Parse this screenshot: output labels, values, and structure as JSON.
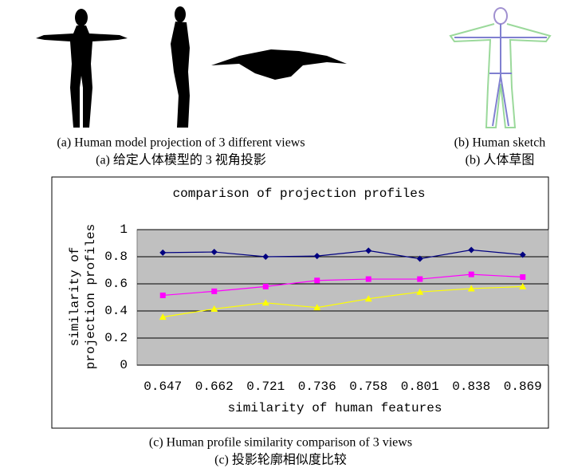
{
  "panels": [
    {
      "caption": "(a) Human model projection of 3 different views",
      "caption_zh": "(a)  给定人体模型的 3 视角投影"
    },
    {
      "caption": "(b) Human sketch",
      "caption_zh": "(b)  人体草图"
    }
  ],
  "chart_data": {
    "type": "line",
    "title": "comparison of projection profiles",
    "xlabel": "similarity of human features",
    "ylabel": [
      "similarity of",
      "projection profiles"
    ],
    "categories": [
      "0.647",
      "0.662",
      "0.721",
      "0.736",
      "0.758",
      "0.801",
      "0.838",
      "0.869"
    ],
    "series": [
      {
        "color": "#000080",
        "marker": "diamond",
        "values": [
          0.83,
          0.835,
          0.8,
          0.805,
          0.845,
          0.785,
          0.85,
          0.815
        ]
      },
      {
        "color": "#ff00ff",
        "marker": "square",
        "values": [
          0.515,
          0.545,
          0.58,
          0.625,
          0.635,
          0.635,
          0.67,
          0.65
        ]
      },
      {
        "color": "#ffff00",
        "marker": "triangle",
        "values": [
          0.355,
          0.415,
          0.46,
          0.425,
          0.49,
          0.54,
          0.565,
          0.58
        ]
      }
    ],
    "ylim": [
      0,
      1
    ],
    "yticks": [
      0,
      0.2,
      0.4,
      0.6,
      0.8,
      1
    ],
    "grid": true,
    "plot_background": "#c0c0c0",
    "caption": "(c) Human profile similarity comparison of 3 views",
    "caption_zh": "(c)  投影轮廓相似度比较"
  }
}
